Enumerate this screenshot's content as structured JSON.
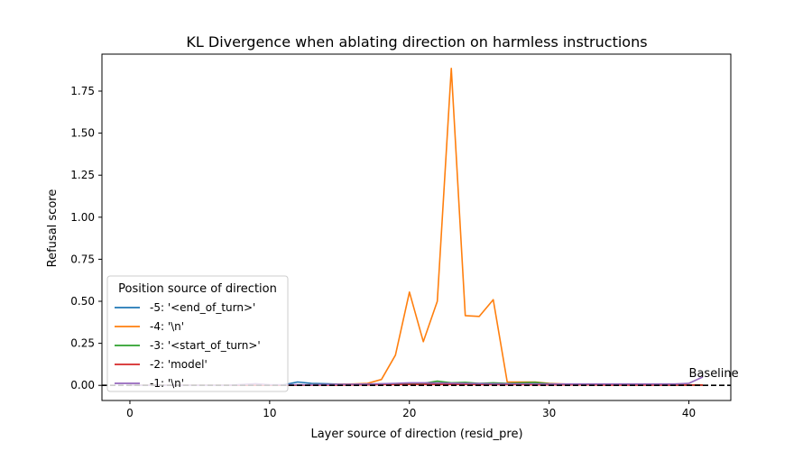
{
  "chart_data": {
    "type": "line",
    "title": "KL Divergence when ablating direction on harmless instructions",
    "xlabel": "Layer source of direction (resid_pre)",
    "ylabel": "Refusal score",
    "xlim": [
      -2,
      43
    ],
    "ylim": [
      -0.09,
      1.97
    ],
    "xticks": [
      0,
      10,
      20,
      30,
      40
    ],
    "yticks": [
      0.0,
      0.25,
      0.5,
      0.75,
      1.0,
      1.25,
      1.5,
      1.75
    ],
    "ytick_labels": [
      "0.00",
      "0.25",
      "0.50",
      "0.75",
      "1.00",
      "1.25",
      "1.50",
      "1.75"
    ],
    "grid": false,
    "legend": {
      "title": "Position source of direction",
      "placement": "lower-left"
    },
    "baseline": {
      "y": 0,
      "label": "Baseline",
      "style": "dashed",
      "color": "#000000"
    },
    "series": [
      {
        "name": "-5: '<end_of_turn>'",
        "color": "#1f77b4",
        "x": [
          0,
          1,
          2,
          3,
          4,
          5,
          6,
          7,
          8,
          9,
          10,
          11,
          12,
          13,
          14,
          15,
          16,
          17,
          18,
          19,
          20,
          21,
          22,
          23,
          24,
          25,
          26,
          27,
          28,
          29,
          30,
          31,
          32,
          33,
          34,
          35,
          36,
          37,
          38,
          39,
          40,
          41
        ],
        "values": [
          0,
          0,
          0,
          0,
          0,
          0,
          0,
          0,
          0,
          0,
          0,
          0.003,
          0.02,
          0.012,
          0.01,
          0.007,
          0.006,
          0.006,
          0.007,
          0.008,
          0.01,
          0.012,
          0.012,
          0.01,
          0.009,
          0.008,
          0.008,
          0.006,
          0.006,
          0.005,
          0.005,
          0.004,
          0.004,
          0.004,
          0.003,
          0.003,
          0.003,
          0.003,
          0.002,
          0.002,
          0.002,
          0.002
        ]
      },
      {
        "name": "-4: '\\n'",
        "color": "#ff7f0e",
        "x": [
          0,
          1,
          2,
          3,
          4,
          5,
          6,
          7,
          8,
          9,
          10,
          11,
          12,
          13,
          14,
          15,
          16,
          17,
          18,
          19,
          20,
          21,
          22,
          23,
          24,
          25,
          26,
          27,
          28,
          29,
          30,
          31,
          32,
          33,
          34,
          35,
          36,
          37,
          38,
          39,
          40,
          41
        ],
        "values": [
          0,
          0,
          0,
          0,
          0,
          0,
          0,
          0,
          0,
          0,
          0,
          0,
          0.002,
          0.003,
          0.005,
          0.006,
          0.008,
          0.012,
          0.035,
          0.18,
          0.555,
          0.26,
          0.5,
          1.885,
          0.415,
          0.41,
          0.51,
          0.02,
          0.02,
          0.02,
          0.012,
          0.008,
          0.006,
          0.005,
          0.004,
          0.004,
          0.003,
          0.003,
          0.003,
          0.003,
          0.003,
          0.003
        ]
      },
      {
        "name": "-3: '<start_of_turn>'",
        "color": "#2ca02c",
        "x": [
          0,
          1,
          2,
          3,
          4,
          5,
          6,
          7,
          8,
          9,
          10,
          11,
          12,
          13,
          14,
          15,
          16,
          17,
          18,
          19,
          20,
          21,
          22,
          23,
          24,
          25,
          26,
          27,
          28,
          29,
          30,
          31,
          32,
          33,
          34,
          35,
          36,
          37,
          38,
          39,
          40,
          41
        ],
        "values": [
          0,
          0,
          0,
          0,
          0,
          0,
          0,
          0,
          0,
          0,
          0,
          0,
          0.002,
          0.003,
          0.003,
          0.004,
          0.005,
          0.006,
          0.008,
          0.01,
          0.012,
          0.012,
          0.025,
          0.015,
          0.018,
          0.012,
          0.015,
          0.012,
          0.015,
          0.018,
          0.01,
          0.006,
          0.005,
          0.004,
          0.004,
          0.003,
          0.003,
          0.003,
          0.003,
          0.002,
          0.002,
          0.002
        ]
      },
      {
        "name": "-2: 'model'",
        "color": "#d62728",
        "x": [
          0,
          1,
          2,
          3,
          4,
          5,
          6,
          7,
          8,
          9,
          10,
          11,
          12,
          13,
          14,
          15,
          16,
          17,
          18,
          19,
          20,
          21,
          22,
          23,
          24,
          25,
          26,
          27,
          28,
          29,
          30,
          31,
          32,
          33,
          34,
          35,
          36,
          37,
          38,
          39,
          40,
          41
        ],
        "values": [
          0,
          0,
          0,
          0,
          0,
          0,
          0,
          0,
          0,
          0,
          0,
          0,
          0.001,
          0.002,
          0.002,
          0.002,
          0.003,
          0.003,
          0.004,
          0.004,
          0.005,
          0.005,
          0.005,
          0.005,
          0.005,
          0.004,
          0.004,
          0.004,
          0.004,
          0.003,
          0.003,
          0.003,
          0.003,
          0.003,
          0.002,
          0.002,
          0.002,
          0.002,
          0.002,
          0.002,
          0.002,
          0.002
        ]
      },
      {
        "name": "-1: '\\n'",
        "color": "#9467bd",
        "x": [
          0,
          1,
          2,
          3,
          4,
          5,
          6,
          7,
          8,
          9,
          10,
          11,
          12,
          13,
          14,
          15,
          16,
          17,
          18,
          19,
          20,
          21,
          22,
          23,
          24,
          25,
          26,
          27,
          28,
          29,
          30,
          31,
          32,
          33,
          34,
          35,
          36,
          37,
          38,
          39,
          40,
          41
        ],
        "values": [
          0,
          0,
          0,
          0,
          0,
          0,
          0,
          0,
          0.005,
          0.01,
          0.004,
          0.004,
          0.004,
          0.004,
          0.005,
          0.006,
          0.007,
          0.008,
          0.01,
          0.012,
          0.015,
          0.015,
          0.014,
          0.013,
          0.012,
          0.011,
          0.01,
          0.01,
          0.009,
          0.009,
          0.008,
          0.008,
          0.008,
          0.008,
          0.008,
          0.008,
          0.008,
          0.008,
          0.008,
          0.008,
          0.012,
          0.05
        ]
      }
    ]
  }
}
